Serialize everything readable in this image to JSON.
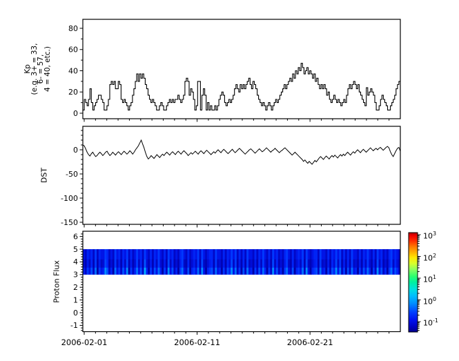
{
  "figure": {
    "background": "#ffffff",
    "line_color": "#000000",
    "axis_color": "#000000"
  },
  "panels": {
    "kp": {
      "ylabel_lines": [
        "Kp",
        "(e.g. 3+ = 33,",
        "6- = 57,",
        "4 = 40, etc.)"
      ],
      "ytick_labels": [
        "0",
        "20",
        "40",
        "60",
        "80"
      ],
      "yticks": [
        0,
        20,
        40,
        60,
        80
      ],
      "yminor": [
        10,
        30,
        50,
        70
      ],
      "ylim": [
        -5.2,
        87.7
      ]
    },
    "dst": {
      "ylabel": "DST",
      "ytick_labels": [
        "0",
        "-50",
        "-100",
        "-150"
      ],
      "yticks": [
        0,
        -50,
        -100,
        -150
      ],
      "ylim": [
        -154,
        48.6
      ]
    },
    "proton": {
      "ylabel": "Proton Flux",
      "ytick_labels": [
        "-1",
        "0",
        "1",
        "2",
        "3",
        "4",
        "5",
        "6"
      ],
      "yticks": [
        -1,
        0,
        1,
        2,
        3,
        4,
        5,
        6
      ],
      "ylim": [
        -1.49,
        6.41
      ]
    }
  },
  "xaxis": {
    "tick_labels": [
      "2006-02-01",
      "2006-02-11",
      "2006-02-21"
    ],
    "major_days": [
      0,
      10,
      20
    ],
    "n_days": 28,
    "start_date": "2006-02-01"
  },
  "colorbar": {
    "scale": "log",
    "tick_exponents": [
      3,
      2,
      1,
      0,
      -1
    ],
    "colormap": "jet",
    "gradient": [
      {
        "o": 0.0,
        "c": "#aa0000"
      },
      {
        "o": 0.03,
        "c": "#ee0000"
      },
      {
        "o": 0.08,
        "c": "#ff2a00"
      },
      {
        "o": 0.14,
        "c": "#ff7700"
      },
      {
        "o": 0.2,
        "c": "#ffb300"
      },
      {
        "o": 0.25,
        "c": "#ffe600"
      },
      {
        "o": 0.31,
        "c": "#d9ff2b"
      },
      {
        "o": 0.37,
        "c": "#8cff5e"
      },
      {
        "o": 0.44,
        "c": "#2bff70"
      },
      {
        "o": 0.5,
        "c": "#00f0a0"
      },
      {
        "o": 0.57,
        "c": "#00e0e0"
      },
      {
        "o": 0.64,
        "c": "#00bbff"
      },
      {
        "o": 0.71,
        "c": "#0090ff"
      },
      {
        "o": 0.8,
        "c": "#0040ff"
      },
      {
        "o": 0.88,
        "c": "#0010ee"
      },
      {
        "o": 0.95,
        "c": "#0000c0"
      },
      {
        "o": 1.0,
        "c": "#000089"
      }
    ]
  },
  "chart_data": [
    {
      "type": "line",
      "name": "Kp",
      "style": "steps",
      "x_start": "2006-02-01",
      "x_step_hours": 3,
      "ylim": [
        -5.2,
        87.7
      ],
      "yticks": [
        0,
        20,
        40,
        60,
        80
      ],
      "values": [
        3,
        13,
        10,
        7,
        13,
        23,
        10,
        3,
        7,
        10,
        13,
        17,
        17,
        13,
        10,
        3,
        3,
        7,
        13,
        27,
        30,
        27,
        30,
        23,
        23,
        30,
        27,
        13,
        10,
        13,
        10,
        7,
        3,
        7,
        10,
        17,
        23,
        30,
        37,
        30,
        37,
        33,
        37,
        33,
        27,
        23,
        17,
        13,
        10,
        13,
        10,
        7,
        3,
        3,
        7,
        10,
        7,
        3,
        3,
        7,
        10,
        13,
        10,
        13,
        10,
        13,
        13,
        17,
        13,
        10,
        13,
        17,
        30,
        33,
        30,
        17,
        23,
        20,
        13,
        3,
        7,
        30,
        30,
        3,
        17,
        23,
        17,
        3,
        10,
        3,
        7,
        3,
        3,
        7,
        3,
        7,
        13,
        17,
        20,
        17,
        10,
        7,
        10,
        13,
        10,
        13,
        17,
        23,
        27,
        23,
        20,
        27,
        23,
        27,
        23,
        27,
        30,
        33,
        27,
        23,
        30,
        27,
        23,
        17,
        13,
        10,
        7,
        10,
        7,
        3,
        7,
        10,
        7,
        3,
        7,
        10,
        13,
        10,
        13,
        17,
        20,
        23,
        27,
        23,
        27,
        30,
        33,
        30,
        37,
        33,
        40,
        37,
        43,
        40,
        47,
        43,
        37,
        40,
        43,
        37,
        40,
        37,
        33,
        37,
        30,
        33,
        27,
        23,
        27,
        23,
        27,
        23,
        17,
        20,
        13,
        10,
        13,
        17,
        13,
        10,
        13,
        10,
        7,
        10,
        13,
        10,
        17,
        23,
        27,
        23,
        27,
        30,
        27,
        23,
        27,
        20,
        17,
        13,
        10,
        7,
        24,
        17,
        20,
        23,
        20,
        17,
        10,
        3,
        3,
        7,
        13,
        17,
        13,
        10,
        7,
        3,
        3,
        7,
        10,
        13,
        17,
        23,
        27,
        30
      ]
    },
    {
      "type": "line",
      "name": "DST",
      "style": "line",
      "x_start": "2006-02-01",
      "x_step_hours": 3,
      "ylim": [
        -154,
        48.6
      ],
      "yticks": [
        0,
        -50,
        -100,
        -150
      ],
      "values": [
        10,
        8,
        2,
        -5,
        -10,
        -13,
        -8,
        -5,
        -10,
        -14,
        -12,
        -8,
        -5,
        -8,
        -12,
        -9,
        -5,
        -3,
        -8,
        -12,
        -9,
        -5,
        -8,
        -11,
        -7,
        -4,
        -7,
        -10,
        -6,
        -3,
        -6,
        -9,
        -6,
        -2,
        -5,
        -9,
        -5,
        0,
        4,
        8,
        14,
        20,
        12,
        4,
        -6,
        -14,
        -19,
        -16,
        -12,
        -15,
        -18,
        -14,
        -10,
        -13,
        -16,
        -12,
        -9,
        -12,
        -8,
        -5,
        -8,
        -11,
        -7,
        -4,
        -7,
        -10,
        -6,
        -3,
        -6,
        -9,
        -5,
        -2,
        -5,
        -8,
        -12,
        -9,
        -6,
        -9,
        -6,
        -3,
        -6,
        -9,
        -5,
        -2,
        -5,
        -8,
        -4,
        -1,
        -4,
        -7,
        -10,
        -7,
        -4,
        -7,
        -3,
        0,
        -3,
        -6,
        -2,
        1,
        -2,
        -5,
        -8,
        -5,
        -2,
        1,
        -3,
        -6,
        -3,
        0,
        3,
        0,
        -3,
        -6,
        -9,
        -6,
        -3,
        0,
        2,
        -1,
        -4,
        -7,
        -4,
        -1,
        2,
        -1,
        -4,
        -2,
        1,
        4,
        1,
        -2,
        -5,
        -2,
        0,
        3,
        0,
        -3,
        -6,
        -3,
        -1,
        2,
        4,
        1,
        -2,
        -5,
        -8,
        -11,
        -8,
        -5,
        -8,
        -11,
        -14,
        -17,
        -20,
        -24,
        -21,
        -25,
        -28,
        -24,
        -27,
        -30,
        -26,
        -22,
        -25,
        -21,
        -17,
        -14,
        -17,
        -20,
        -16,
        -13,
        -16,
        -19,
        -15,
        -12,
        -15,
        -11,
        -14,
        -17,
        -13,
        -10,
        -13,
        -9,
        -12,
        -8,
        -5,
        -8,
        -11,
        -7,
        -4,
        -7,
        -3,
        0,
        -3,
        -6,
        -2,
        1,
        -2,
        -5,
        -2,
        1,
        4,
        1,
        -2,
        1,
        3,
        0,
        3,
        5,
        2,
        -1,
        2,
        5,
        7,
        4,
        -4,
        -10,
        -14,
        -8,
        -2,
        3,
        5,
        -3
      ]
    },
    {
      "type": "heatmap",
      "name": "Proton Flux",
      "y_band": [
        3,
        5
      ],
      "colormap": "jet",
      "scale": "log",
      "clim_exponents": [
        -1,
        3
      ],
      "approx_values": "mostly 0.1 to 0.8 (dark blue to light blue streaks)",
      "intensity_colors": [
        "#0000a8",
        "#0008c8",
        "#0014e6",
        "#0024f5",
        "#0038ff",
        "#0050ff",
        "#0070ff",
        "#0090ff",
        "#00b0ff",
        "#00ccff"
      ],
      "columns": "31425160423751306241527041362518304152630417251304621503426172034516230415372614051623041526304172513046215034261720345162304153726140516230415263041725130462531"
    }
  ]
}
